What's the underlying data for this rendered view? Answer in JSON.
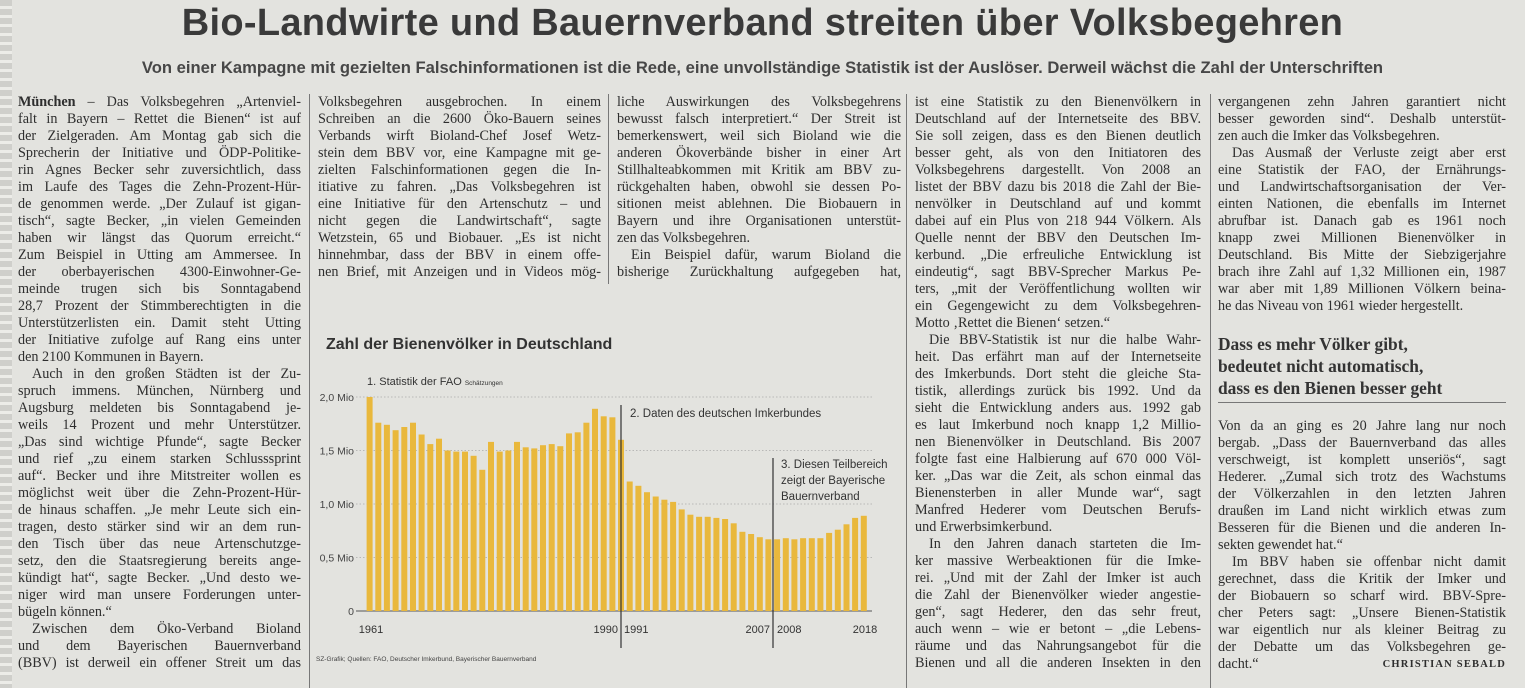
{
  "headline": "Bio-Landwirte und Bauernverband streiten über Volksbegehren",
  "subheadline": "Von einer Kampagne mit gezielten Falschinformationen ist die Rede, eine unvollständige Statistik ist der Auslöser. Derweil wächst die Zahl der Unterschriften",
  "columns": [
    {
      "lead": "München",
      "paragraphs": [
        {
          "indent": false,
          "last": true,
          "lines": [
            " – Das Volksbegehren „Artenviel-",
            "falt in Bayern – Rettet die Bienen“ ist auf",
            "der Zielgeraden. Am Montag gab sich die",
            "Sprecherin der Initiative und ÖDP-Politike-",
            "rin Agnes Becker sehr zuversichtlich, dass",
            "im Laufe des Tages die Zehn-Prozent-Hür-",
            "de genommen werde. „Der Zulauf ist gigan-",
            "tisch“, sagte Becker, „in vielen Gemeinden",
            "haben wir längst das Quorum erreicht.“",
            "Zum Beispiel in Utting am Ammersee. In",
            "der oberbayerischen 4300-Einwohner-Ge-",
            "meinde trugen sich bis Sonntagabend",
            "28,7 Prozent der Stimmberechtigten in die",
            "Unterstützerlisten ein. Damit steht Utting",
            "der Initiative zufolge auf Rang eins unter",
            "den 2100 Kommunen in Bayern."
          ]
        },
        {
          "indent": true,
          "last": true,
          "lines": [
            "Auch in den großen Städten ist der Zu-",
            "spruch immens. München, Nürnberg und",
            "Augsburg meldeten bis Sonntagabend je-",
            "weils 14 Prozent und mehr Unterstützer.",
            "„Das sind wichtige Pfunde“, sagte Becker",
            "und rief „zu einem starken Schlusssprint",
            "auf“. Becker und ihre Mitstreiter wollen es",
            "möglichst weit über die Zehn-Prozent-Hür-",
            "de hinaus schaffen. „Je mehr Leute sich ein-",
            "tragen, desto stärker sind wir an dem run-",
            "den Tisch über das neue Artenschutzge-",
            "setz, den die Staatsregierung bereits ange-",
            "kündigt hat“, sagte Becker. „Und desto we-",
            "niger wird man unsere Forderungen unter-",
            "bügeln können.“"
          ]
        },
        {
          "indent": true,
          "last": false,
          "lines": [
            "Zwischen dem Öko-Verband Bioland",
            "und dem Bayerischen Bauernverband",
            "(BBV) ist derweil ein offener Streit um das"
          ]
        }
      ]
    },
    {
      "paragraphs": [
        {
          "indent": false,
          "last": false,
          "lines": [
            "Volksbegehren ausgebrochen. In einem",
            "Schreiben an die 2600 Öko-Bauern seines",
            "Verbands wirft Bioland-Chef Josef Wetz-",
            "stein dem BBV vor, eine Kampagne mit ge-",
            "zielten Falschinformationen gegen die In-",
            "itiative zu fahren. „Das Volksbegehren ist",
            "eine Initiative für den Artenschutz – und",
            "nicht gegen die Landwirtschaft“, sagte",
            "Wetzstein, 65 und Biobauer. „Es ist nicht",
            "hinnehmbar, dass der BBV in einem offe-",
            "nen Brief, mit Anzeigen und in Videos mög-"
          ]
        }
      ]
    },
    {
      "paragraphs": [
        {
          "indent": false,
          "last": true,
          "lines": [
            "liche Auswirkungen des Volksbegehrens",
            "bewusst falsch interpretiert.“ Der Streit ist",
            "bemerkenswert, weil sich Bioland wie die",
            "anderen Ökoverbände bisher in einer Art",
            "Stillhalteabkommen mit Kritik am BBV zu-",
            "rückgehalten haben, obwohl sie dessen Po-",
            "sitionen meist ablehnen. Die Biobauern in",
            "Bayern und ihre Organisationen unterstüt-",
            "zen das Volksbegehren."
          ]
        },
        {
          "indent": true,
          "last": false,
          "lines": [
            "Ein Beispiel dafür, warum Bioland die",
            "bisherige Zurückhaltung aufgegeben hat,"
          ]
        }
      ]
    },
    {
      "paragraphs": [
        {
          "indent": false,
          "last": true,
          "lines": [
            "ist eine Statistik zu den Bienenvölkern in",
            "Deutschland auf der Internetseite des BBV.",
            "Sie soll zeigen, dass es den Bienen deutlich",
            "besser geht, als von den Initiatoren des",
            "Volksbegehrens dargestellt. Von 2008 an",
            "listet der BBV dazu bis 2018 die Zahl der Bie-",
            "nenvölker in Deutschland auf und kommt",
            "dabei auf ein Plus von 218 944 Völkern. Als",
            "Quelle nennt der BBV den Deutschen Im-",
            "kerbund. „Die erfreuliche Entwicklung ist",
            "eindeutig“, sagt BBV-Sprecher Markus Pe-",
            "ters, „mit der Veröffentlichung wollten wir",
            "ein Gegengewicht zu dem Volksbegehren-",
            "Motto ‚Rettet die Bienen‘ setzen.“"
          ]
        },
        {
          "indent": true,
          "last": true,
          "lines": [
            "Die BBV-Statistik ist nur die halbe Wahr-",
            "heit. Das erfährt man auf der Internetseite",
            "des Imkerbunds. Dort steht die gleiche Sta-",
            "tistik, allerdings zurück bis 1992. Und da",
            "sieht die Entwicklung anders aus. 1992 gab",
            "es laut Imkerbund noch knapp 1,2 Millio-",
            "nen Bienenvölker in Deutschland. Bis 2007",
            "folgte fast eine Halbierung auf 670 000 Völ-",
            "ker. „Das war die Zeit, als schon einmal das",
            "Bienensterben in aller Munde war“, sagt",
            "Manfred Hederer vom Deutschen Berufs-",
            "und Erwerbsimkerbund."
          ]
        },
        {
          "indent": true,
          "last": false,
          "lines": [
            "In den Jahren danach starteten die Im-",
            "ker massive Werbeaktionen für die Imke-",
            "rei. „Und mit der Zahl der Imker ist auch",
            "die Zahl der Bienenvölker wieder angestie-",
            "gen“, sagt Hederer, den das sehr freut,",
            "auch wenn – wie er betont – „die Lebens-",
            "räume und das Nahrungsangebot für die",
            "Bienen und all die anderen Insekten in den"
          ]
        }
      ]
    },
    {
      "paragraphs": [
        {
          "indent": false,
          "last": true,
          "lines": [
            "vergangenen zehn Jahren garantiert nicht",
            "besser geworden sind“. Deshalb unterstüt-",
            "zen auch die Imker das Volksbegehren."
          ]
        },
        {
          "indent": true,
          "last": true,
          "lines": [
            "Das Ausmaß der Verluste zeigt aber erst",
            "eine Statistik der FAO, der Ernährungs-",
            "und Landwirtschaftsorganisation der Ver-",
            "einten Nationen, die ebenfalls im Internet",
            "abrufbar ist. Danach gab es 1961 noch",
            "knapp zwei Millionen Bienenvölker in",
            "Deutschland. Bis Mitte der Siebzigerjahre",
            "brach ihre Zahl auf 1,32 Millionen ein, 1987",
            "war aber mit 1,89 Millionen Völkern beina-",
            "he das Niveau von 1961 wieder hergestellt."
          ]
        }
      ]
    },
    {
      "paragraphs": [
        {
          "indent": false,
          "last": true,
          "lines": [
            "Von da an ging es 20 Jahre lang nur noch",
            "bergab. „Dass der Bauernverband das alles",
            "verschweigt, ist komplett unseriös“, sagt",
            "Hederer. „Zumal sich trotz des Wachstums",
            "der Völkerzahlen in den letzten Jahren",
            "draußen im Land nicht wirklich etwas zum",
            "Besseren für die Bienen und die anderen In-",
            "sekten gewendet hat.“"
          ]
        },
        {
          "indent": true,
          "last": true,
          "lines": [
            "Im BBV haben sie offenbar nicht damit",
            "gerechnet, dass die Kritik der Imker und",
            "der Biobauern so scharf wird. BBV-Spre-",
            "cher Peters sagt: „Unsere Bienen-Statistik",
            "war eigentlich nur als kleiner Beitrag zu",
            "der Debatte um das Volksbegehren ge-",
            "dacht.“"
          ]
        }
      ]
    }
  ],
  "pullquote": [
    "Dass es mehr Völker gibt,",
    "bedeutet nicht automatisch,",
    "dass es den Bienen besser geht"
  ],
  "byline": "CHRISTIAN SEBALD",
  "colors": {
    "bar": "#e9b83c",
    "paper": "#e3e3df",
    "text": "#2e2e2e"
  },
  "chart_data": {
    "type": "bar",
    "title": "Zahl der Bienenvölker in Deutschland",
    "source": "SZ-Grafik; Quellen: FAO, Deutscher Imkerbund, Bayerischer Bauernverband",
    "ylabel": "",
    "xlabel": "",
    "ylim": [
      0,
      2.0
    ],
    "yticks": [
      {
        "value": 0,
        "label": "0"
      },
      {
        "value": 0.5,
        "label": "0,5 Mio"
      },
      {
        "value": 1.0,
        "label": "1,0 Mio"
      },
      {
        "value": 1.5,
        "label": "1,5 Mio"
      },
      {
        "value": 2.0,
        "label": "2,0 Mio"
      }
    ],
    "xtick_labels": [
      "1961",
      "1990",
      "1991",
      "2007",
      "2008",
      "2018"
    ],
    "unit": "Mio Bienenvölker",
    "sections": [
      {
        "label": "1. Statistik der FAO",
        "note": "Schätzungen",
        "from": 1961,
        "to": 1990
      },
      {
        "label": "2. Daten des deutschen Imkerbundes",
        "from": 1991,
        "to": 2007
      },
      {
        "label_lines": [
          "3. Diesen Teilbereich",
          "zeigt der Bayerische",
          "Bauernverband"
        ],
        "from": 2008,
        "to": 2018
      }
    ],
    "x": [
      1961,
      1962,
      1963,
      1964,
      1965,
      1966,
      1967,
      1968,
      1969,
      1970,
      1971,
      1972,
      1973,
      1974,
      1975,
      1976,
      1977,
      1978,
      1979,
      1980,
      1981,
      1982,
      1983,
      1984,
      1985,
      1986,
      1987,
      1988,
      1989,
      1990,
      1991,
      1992,
      1993,
      1994,
      1995,
      1996,
      1997,
      1998,
      1999,
      2000,
      2001,
      2002,
      2003,
      2004,
      2005,
      2006,
      2007,
      2008,
      2009,
      2010,
      2011,
      2012,
      2013,
      2014,
      2015,
      2016,
      2017,
      2018
    ],
    "values": [
      2.0,
      1.76,
      1.74,
      1.69,
      1.72,
      1.76,
      1.65,
      1.56,
      1.61,
      1.5,
      1.49,
      1.49,
      1.45,
      1.32,
      1.58,
      1.49,
      1.5,
      1.58,
      1.53,
      1.52,
      1.55,
      1.56,
      1.54,
      1.66,
      1.67,
      1.76,
      1.89,
      1.82,
      1.81,
      1.6,
      1.21,
      1.17,
      1.11,
      1.07,
      1.04,
      1.02,
      0.95,
      0.9,
      0.88,
      0.88,
      0.87,
      0.86,
      0.82,
      0.74,
      0.72,
      0.69,
      0.67,
      0.67,
      0.68,
      0.67,
      0.68,
      0.68,
      0.68,
      0.73,
      0.76,
      0.81,
      0.87,
      0.89
    ]
  }
}
